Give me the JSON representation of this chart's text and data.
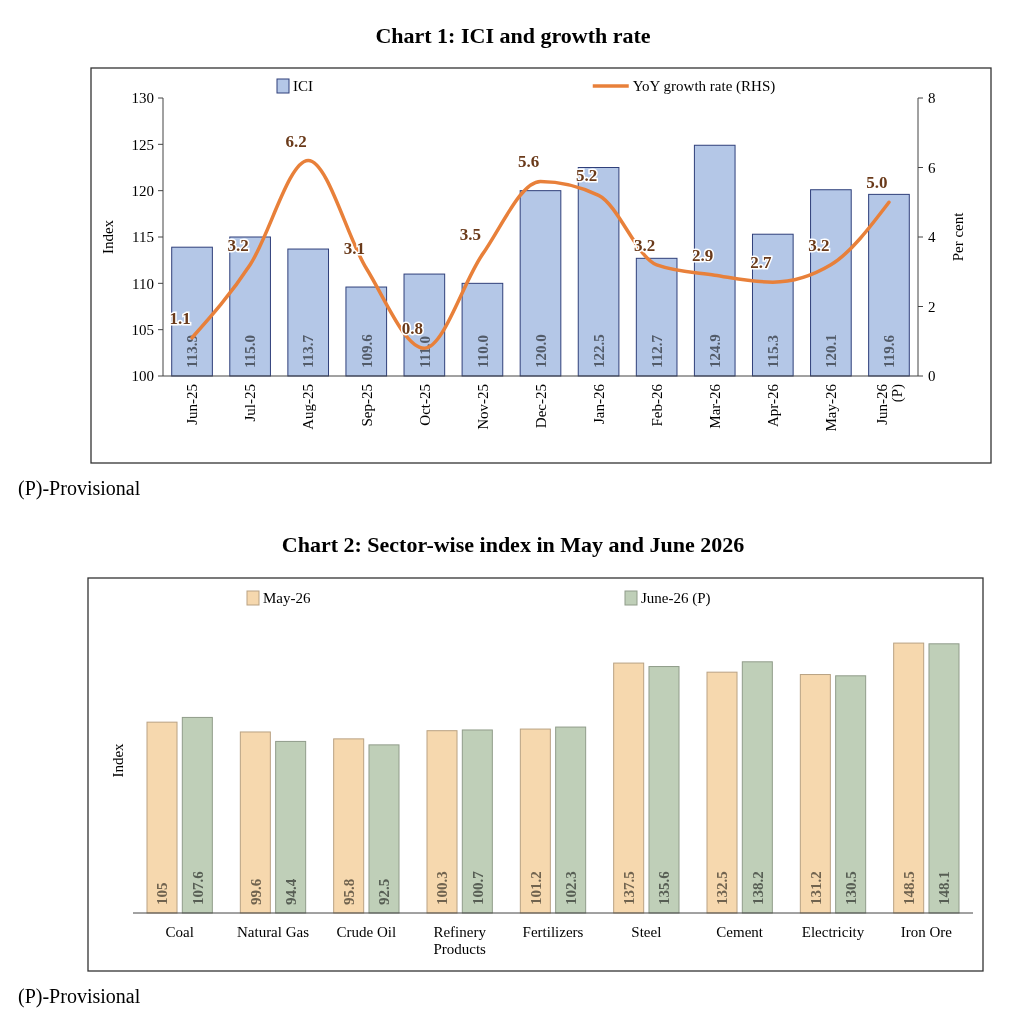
{
  "chart_data": [
    {
      "type": "bar",
      "title": "Chart 1: ICI and growth rate",
      "categories": [
        "Jun-25",
        "Jul-25",
        "Aug-25",
        "Sep-25",
        "Oct-25",
        "Nov-25",
        "Dec-25",
        "Jan-26",
        "Feb-26",
        "Mar-26",
        "Apr-26",
        "May-26",
        "Jun-26 (P)"
      ],
      "series": [
        {
          "name": "ICI",
          "color": "#b4c7e7",
          "values": [
            113.9,
            115.0,
            113.7,
            109.6,
            111.0,
            110.0,
            120.0,
            122.5,
            112.7,
            124.9,
            115.3,
            120.1,
            119.6
          ],
          "value_labels": [
            "113.9",
            "115.0",
            "113.7",
            "109.6",
            "111.0",
            "110.0",
            "120.0",
            "122.5",
            "112.7",
            "124.9",
            "115.3",
            "120.1",
            "119.6"
          ]
        },
        {
          "name": "YoY growth rate (RHS)",
          "type": "line",
          "axis": "y2",
          "color": "#e8803a",
          "values": [
            1.1,
            3.2,
            6.2,
            3.1,
            0.8,
            3.5,
            5.6,
            5.2,
            3.2,
            2.9,
            2.7,
            3.2,
            5.0
          ],
          "value_labels": [
            "1.1",
            "3.2",
            "6.2",
            "3.1",
            "0.8",
            "3.5",
            "5.6",
            "5.2",
            "3.2",
            "2.9",
            "2.7",
            "3.2",
            "5.0"
          ]
        }
      ],
      "ylabel": "Index",
      "y2label": "Per cent",
      "ylim": [
        100,
        130
      ],
      "yticks": [
        100,
        105,
        110,
        115,
        120,
        125,
        130
      ],
      "y2lim": [
        0,
        8
      ],
      "y2ticks": [
        0,
        2,
        4,
        6,
        8
      ],
      "legend": "top",
      "annotations": [
        "(P)-Provisional"
      ]
    },
    {
      "type": "bar",
      "title": "Chart 2: Sector-wise index in May and June 2026",
      "categories": [
        "Coal",
        "Natural Gas",
        "Crude Oil",
        "Refinery Products",
        "Fertilizers",
        "Steel",
        "Cement",
        "Electricity",
        "Iron Ore"
      ],
      "series": [
        {
          "name": "May-26",
          "color": "#f6d8ae",
          "values": [
            105,
            99.6,
            95.8,
            100.3,
            101.2,
            137.5,
            132.5,
            131.2,
            148.5
          ]
        },
        {
          "name": "June-26 (P)",
          "color": "#bfcfb8",
          "values": [
            107.6,
            94.4,
            92.5,
            100.7,
            102.3,
            135.6,
            138.2,
            130.5,
            148.1
          ]
        }
      ],
      "ylabel": "Index",
      "tick_labels": "x",
      "legend": "top",
      "data_labels": true,
      "annotations": [
        "(P)-Provisional"
      ]
    }
  ]
}
